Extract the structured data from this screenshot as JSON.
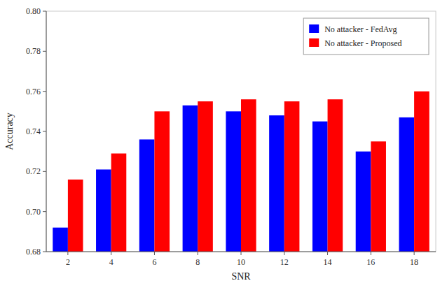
{
  "chart_data": {
    "type": "bar",
    "xlabel": "SNR",
    "ylabel": "Accuracy",
    "categories": [
      "2",
      "4",
      "6",
      "8",
      "10",
      "12",
      "14",
      "16",
      "18"
    ],
    "series": [
      {
        "name": "No attacker - FedAvg",
        "color": "#0000FF",
        "values": [
          0.692,
          0.721,
          0.736,
          0.753,
          0.75,
          0.748,
          0.745,
          0.73,
          0.747
        ]
      },
      {
        "name": "No attacker - Proposed",
        "color": "#FF0000",
        "values": [
          0.716,
          0.729,
          0.75,
          0.755,
          0.756,
          0.755,
          0.756,
          0.735,
          0.76
        ]
      }
    ],
    "ylim": [
      0.68,
      0.8
    ],
    "yticks": [
      0.68,
      {
        "value": 0.7,
        "label": "0.70"
      },
      0.72,
      0.74,
      0.76,
      0.78,
      {
        "value": 0.8,
        "label": "0.80"
      }
    ],
    "grid": false,
    "legend": "upper right"
  }
}
